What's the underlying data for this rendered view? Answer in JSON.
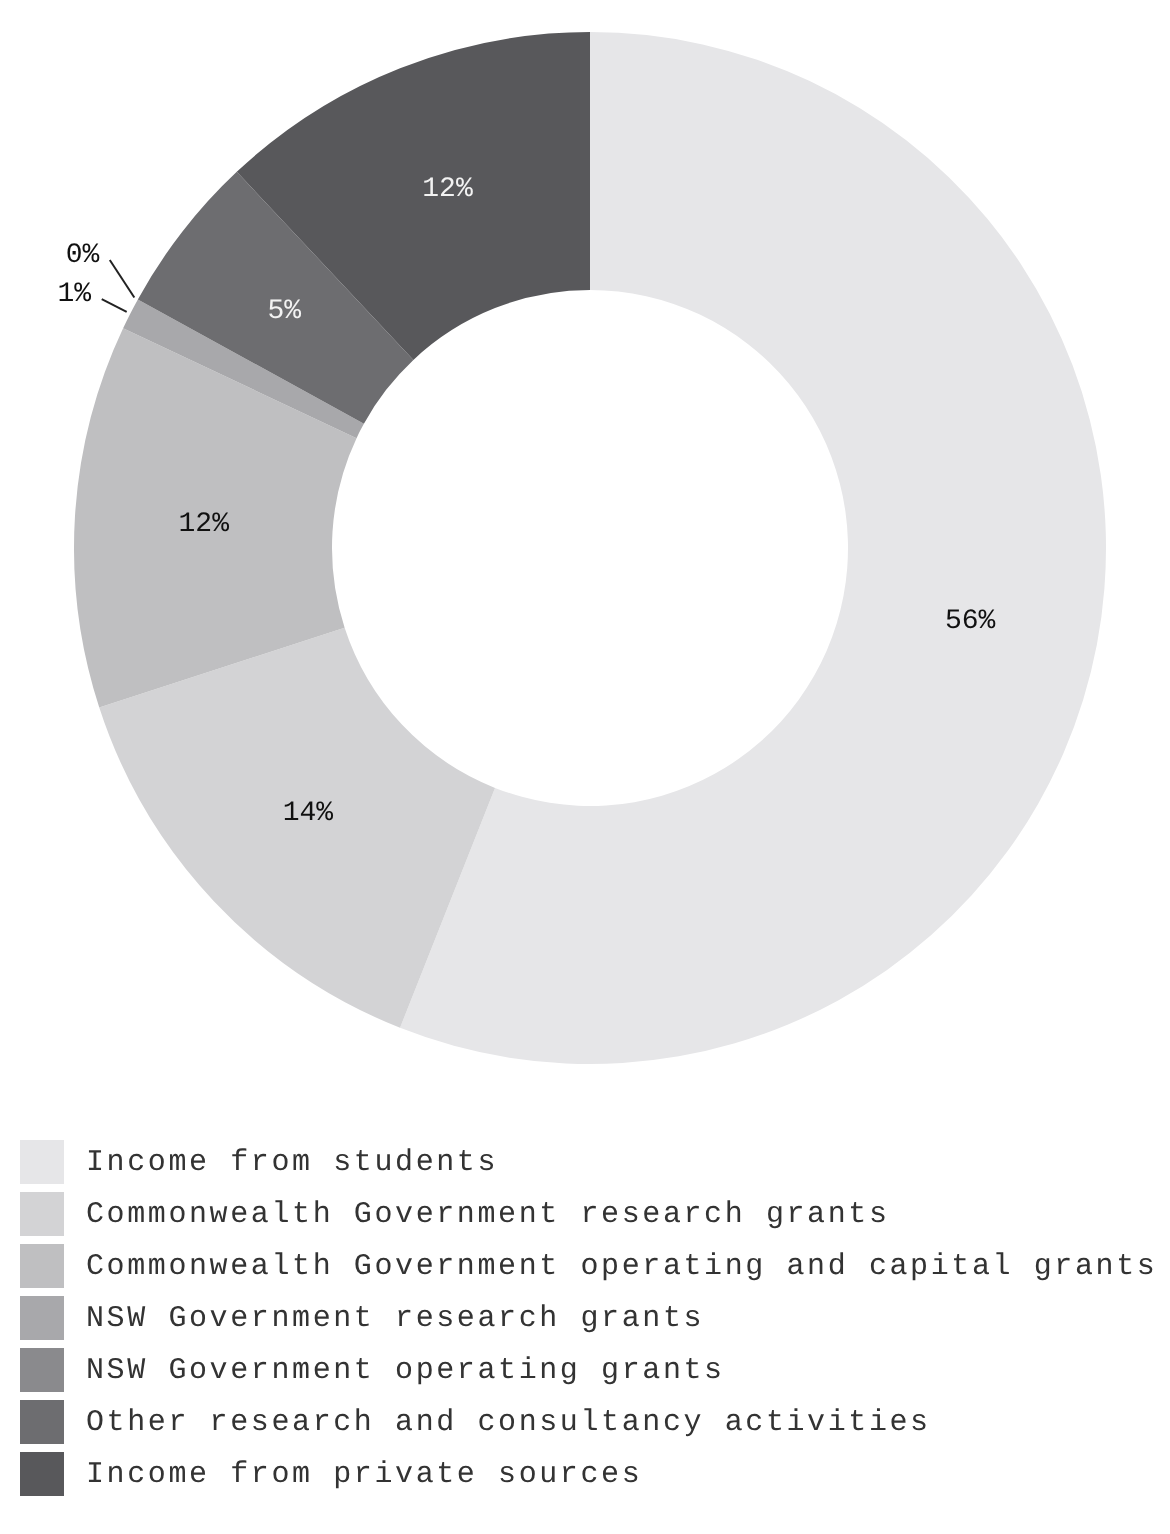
{
  "chart_data": {
    "type": "donut",
    "categories": [
      "Income from students",
      "Commonwealth Government research grants",
      "Commonwealth Government operating and capital grants",
      "NSW Government research grants",
      "NSW Government operating grants",
      "Other research and consultancy activities",
      "Income from private sources"
    ],
    "values": [
      56,
      14,
      12,
      1,
      0,
      5,
      12
    ],
    "value_labels": [
      "56%",
      "14%",
      "12%",
      "1%",
      "0%",
      "5%",
      "12%"
    ],
    "colors": [
      "#e6e6e8",
      "#d3d3d5",
      "#bfbfc1",
      "#a8a8ab",
      "#8a8a8d",
      "#6d6d70",
      "#58585b"
    ],
    "legend": "bottom"
  }
}
